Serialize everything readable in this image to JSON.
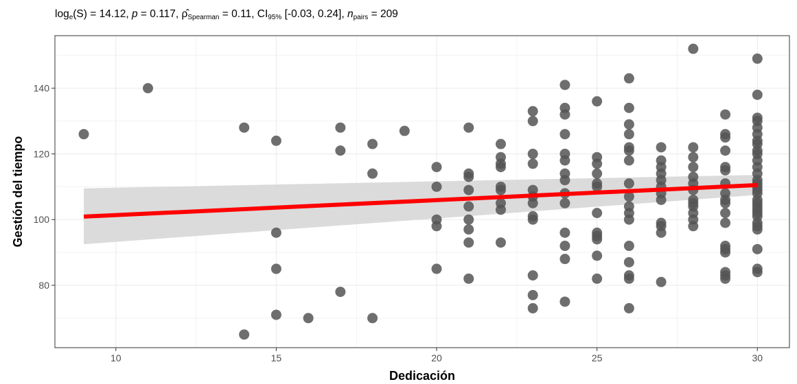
{
  "subtitle": {
    "log_prefix": "log",
    "log_sub": "e",
    "log_stat": "(S) = 14.12, ",
    "p_label": "p",
    "p_value": " = 0.117, ",
    "rho_symbol": "ρ̂",
    "rho_sub": "Spearman",
    "rho_value": " = 0.11, CI",
    "ci_sub": "95%",
    "ci_value": " [-0.03, 0.24], ",
    "n_label": "n",
    "n_sub": "pairs",
    "n_value": " = 209"
  },
  "chart_data": {
    "type": "scatter",
    "xlabel": "Dedicación",
    "ylabel": "Gestión del tiempo",
    "xlim": [
      8.1,
      31.0
    ],
    "ylim": [
      61,
      156
    ],
    "x_ticks": [
      10,
      15,
      20,
      25,
      30
    ],
    "y_ticks": [
      80,
      100,
      120,
      140
    ],
    "grid": true,
    "colors": {
      "points": "#555555",
      "fit_line": "#ff0000",
      "ribbon": "#d9d9d9",
      "grid": "#ebebeb"
    },
    "points": [
      [
        9,
        126
      ],
      [
        11,
        140
      ],
      [
        14,
        128
      ],
      [
        14,
        65
      ],
      [
        15,
        124
      ],
      [
        15,
        96
      ],
      [
        15,
        85
      ],
      [
        15,
        71
      ],
      [
        16,
        70
      ],
      [
        17,
        128
      ],
      [
        17,
        121
      ],
      [
        17,
        78
      ],
      [
        18,
        123
      ],
      [
        18,
        114
      ],
      [
        18,
        70
      ],
      [
        19,
        127
      ],
      [
        20,
        116
      ],
      [
        20,
        110
      ],
      [
        20,
        100
      ],
      [
        20,
        98
      ],
      [
        20,
        85
      ],
      [
        21,
        128
      ],
      [
        21,
        114
      ],
      [
        21,
        113
      ],
      [
        21,
        109
      ],
      [
        21,
        104
      ],
      [
        21,
        100
      ],
      [
        21,
        97
      ],
      [
        21,
        93
      ],
      [
        21,
        82
      ],
      [
        22,
        123
      ],
      [
        22,
        119
      ],
      [
        22,
        117
      ],
      [
        22,
        116
      ],
      [
        22,
        110
      ],
      [
        22,
        109
      ],
      [
        22,
        105
      ],
      [
        22,
        103
      ],
      [
        22,
        93
      ],
      [
        23,
        133
      ],
      [
        23,
        130
      ],
      [
        23,
        120
      ],
      [
        23,
        117
      ],
      [
        23,
        109
      ],
      [
        23,
        107
      ],
      [
        23,
        105
      ],
      [
        23,
        101
      ],
      [
        23,
        100
      ],
      [
        23,
        83
      ],
      [
        23,
        77
      ],
      [
        23,
        73
      ],
      [
        24,
        141
      ],
      [
        24,
        134
      ],
      [
        24,
        132
      ],
      [
        24,
        126
      ],
      [
        24,
        120
      ],
      [
        24,
        118
      ],
      [
        24,
        114
      ],
      [
        24,
        112
      ],
      [
        24,
        108
      ],
      [
        24,
        105
      ],
      [
        24,
        96
      ],
      [
        24,
        92
      ],
      [
        24,
        88
      ],
      [
        24,
        75
      ],
      [
        25,
        136
      ],
      [
        25,
        119
      ],
      [
        25,
        117
      ],
      [
        25,
        114
      ],
      [
        25,
        111
      ],
      [
        25,
        110
      ],
      [
        25,
        102
      ],
      [
        25,
        96
      ],
      [
        25,
        95
      ],
      [
        25,
        94
      ],
      [
        25,
        89
      ],
      [
        25,
        82
      ],
      [
        26,
        143
      ],
      [
        26,
        134
      ],
      [
        26,
        129
      ],
      [
        26,
        126
      ],
      [
        26,
        122
      ],
      [
        26,
        121
      ],
      [
        26,
        118
      ],
      [
        26,
        111
      ],
      [
        26,
        107
      ],
      [
        26,
        104
      ],
      [
        26,
        102
      ],
      [
        26,
        100
      ],
      [
        26,
        92
      ],
      [
        26,
        87
      ],
      [
        26,
        83
      ],
      [
        26,
        82
      ],
      [
        26,
        73
      ],
      [
        27,
        122
      ],
      [
        27,
        118
      ],
      [
        27,
        116
      ],
      [
        27,
        114
      ],
      [
        27,
        112
      ],
      [
        27,
        110
      ],
      [
        27,
        108
      ],
      [
        27,
        106
      ],
      [
        27,
        99
      ],
      [
        27,
        98
      ],
      [
        27,
        96
      ],
      [
        27,
        81
      ],
      [
        28,
        152
      ],
      [
        28,
        122
      ],
      [
        28,
        119
      ],
      [
        28,
        116
      ],
      [
        28,
        113
      ],
      [
        28,
        111
      ],
      [
        28,
        109
      ],
      [
        28,
        106
      ],
      [
        28,
        105
      ],
      [
        28,
        104
      ],
      [
        28,
        102
      ],
      [
        28,
        100
      ],
      [
        28,
        98
      ],
      [
        29,
        132
      ],
      [
        29,
        126
      ],
      [
        29,
        125
      ],
      [
        29,
        121
      ],
      [
        29,
        116
      ],
      [
        29,
        115
      ],
      [
        29,
        111
      ],
      [
        29,
        108
      ],
      [
        29,
        106
      ],
      [
        29,
        105
      ],
      [
        29,
        102
      ],
      [
        29,
        99
      ],
      [
        29,
        92
      ],
      [
        29,
        91
      ],
      [
        29,
        90
      ],
      [
        29,
        84
      ],
      [
        29,
        83
      ],
      [
        29,
        82
      ],
      [
        30,
        149
      ],
      [
        30,
        138
      ],
      [
        30,
        131
      ],
      [
        30,
        130
      ],
      [
        30,
        128
      ],
      [
        30,
        126
      ],
      [
        30,
        124
      ],
      [
        30,
        123
      ],
      [
        30,
        121
      ],
      [
        30,
        120
      ],
      [
        30,
        118
      ],
      [
        30,
        116
      ],
      [
        30,
        114
      ],
      [
        30,
        112
      ],
      [
        30,
        111
      ],
      [
        30,
        110
      ],
      [
        30,
        109
      ],
      [
        30,
        108
      ],
      [
        30,
        106
      ],
      [
        30,
        105
      ],
      [
        30,
        104
      ],
      [
        30,
        103
      ],
      [
        30,
        102
      ],
      [
        30,
        101
      ],
      [
        30,
        99
      ],
      [
        30,
        98
      ],
      [
        30,
        97
      ],
      [
        30,
        91
      ],
      [
        30,
        85
      ],
      [
        30,
        84
      ]
    ],
    "fit_line": {
      "x": [
        9,
        30
      ],
      "y": [
        100.9,
        110.5
      ]
    },
    "ci_ribbon": {
      "x": [
        9,
        30
      ],
      "lower": [
        92.5,
        107.5
      ],
      "upper": [
        109.5,
        113.6
      ]
    }
  }
}
